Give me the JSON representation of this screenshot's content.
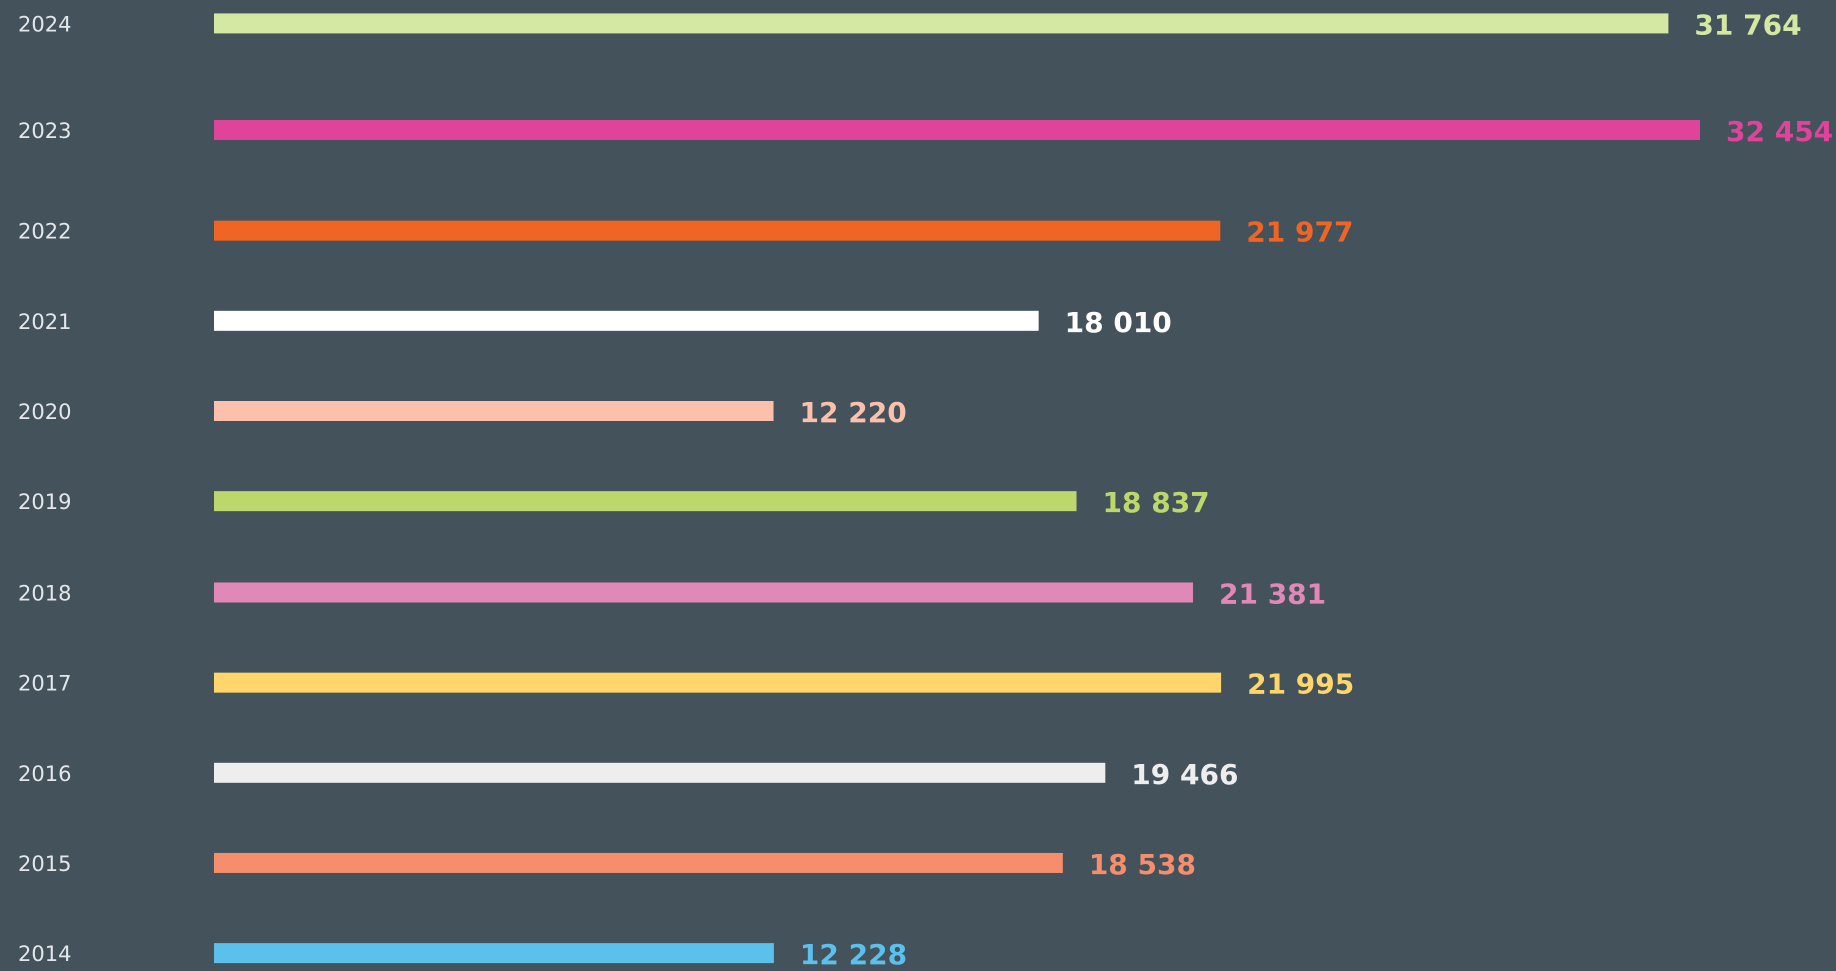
{
  "chart_data": {
    "type": "bar",
    "orientation": "horizontal",
    "categories": [
      "2024",
      "2023",
      "2022",
      "2021",
      "2020",
      "2019",
      "2018",
      "2017",
      "2016",
      "2015",
      "2014"
    ],
    "values": [
      31764,
      32454,
      21977,
      18010,
      12220,
      18837,
      21381,
      21995,
      19466,
      18538,
      12228
    ],
    "value_labels": [
      "31 764",
      "32 454",
      "21 977",
      "18 010",
      "12 220",
      "18 837",
      "21 381",
      "21 995",
      "19 466",
      "18 538",
      "12 228"
    ],
    "colors": [
      "#d4e8a4",
      "#e0449a",
      "#f06424",
      "#ffffff",
      "#fcc0ac",
      "#bcd86c",
      "#e088b8",
      "#ffd66c",
      "#eeeeee",
      "#f48e6c",
      "#5cc0ec"
    ]
  }
}
